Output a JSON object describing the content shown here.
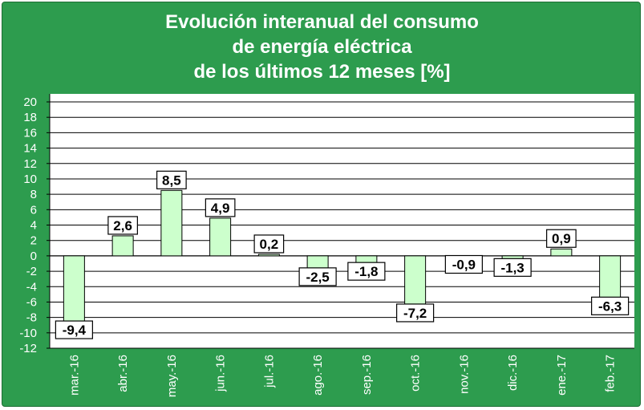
{
  "chart_data": {
    "type": "bar",
    "title_lines": [
      "Evolución interanual del consumo",
      "de energía eléctrica",
      "de los últimos 12 meses [%]"
    ],
    "categories": [
      "mar.-16",
      "abr.-16",
      "may.-16",
      "jun.-16",
      "jul.-16",
      "ago.-16",
      "sep.-16",
      "oct.-16",
      "nov.-16",
      "dic.-16",
      "ene.-17",
      "feb.-17"
    ],
    "values": [
      -9.4,
      2.6,
      8.5,
      4.9,
      0.2,
      -2.5,
      -1.8,
      -7.2,
      -0.9,
      -1.3,
      0.9,
      -6.3
    ],
    "data_labels": [
      "-9,4",
      "2,6",
      "8,5",
      "4,9",
      "0,2",
      "-2,5",
      "-1,8",
      "-7,2",
      "-0,9",
      "-1,3",
      "0,9",
      "-6,3"
    ],
    "y_ticks": [
      "20",
      "18",
      "16",
      "14",
      "12",
      "10",
      "8",
      "6",
      "4",
      "2",
      "0",
      "-2",
      "-4",
      "-6",
      "-8",
      "-10",
      "-12"
    ],
    "ylim": [
      -12,
      20
    ],
    "ystep": 2,
    "grid": true,
    "colors": {
      "background": "#2d9c4e",
      "plot_area": "#ffffff",
      "bar_fill": "#ccffcc",
      "bar_stroke": "#000000",
      "gridline": "#000000",
      "text": "#ffffff"
    }
  }
}
